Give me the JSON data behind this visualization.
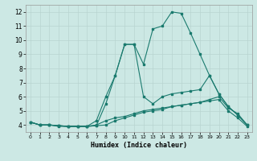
{
  "xlabel": "Humidex (Indice chaleur)",
  "background_color": "#cce8e4",
  "grid_color": "#b8d4d0",
  "line_color": "#1a7a6e",
  "xlim": [
    -0.5,
    23.5
  ],
  "ylim": [
    3.5,
    12.5
  ],
  "xticks": [
    0,
    1,
    2,
    3,
    4,
    5,
    6,
    7,
    8,
    9,
    10,
    11,
    12,
    13,
    14,
    15,
    16,
    17,
    18,
    19,
    20,
    21,
    22,
    23
  ],
  "yticks": [
    4,
    5,
    6,
    7,
    8,
    9,
    10,
    11,
    12
  ],
  "line1_x": [
    0,
    1,
    2,
    3,
    4,
    5,
    6,
    7,
    8,
    9,
    10,
    11,
    12,
    13,
    14,
    15,
    16,
    17,
    18,
    19,
    20,
    21,
    22,
    23
  ],
  "line1_y": [
    4.2,
    4.0,
    4.0,
    3.9,
    3.9,
    3.9,
    3.9,
    4.0,
    4.3,
    4.5,
    4.6,
    4.8,
    5.0,
    5.1,
    5.2,
    5.3,
    5.4,
    5.5,
    5.6,
    5.7,
    5.8,
    5.0,
    4.5,
    3.9
  ],
  "line2_x": [
    0,
    1,
    2,
    3,
    4,
    5,
    6,
    7,
    8,
    9,
    10,
    11,
    12,
    13,
    14,
    15,
    16,
    17,
    18,
    19,
    20,
    21,
    22,
    23
  ],
  "line2_y": [
    4.2,
    4.0,
    4.0,
    3.95,
    3.9,
    3.9,
    3.9,
    3.95,
    4.0,
    4.3,
    4.5,
    4.7,
    4.9,
    5.0,
    5.1,
    5.3,
    5.4,
    5.5,
    5.6,
    5.8,
    6.0,
    5.2,
    4.8,
    4.0
  ],
  "line3_x": [
    0,
    1,
    2,
    3,
    4,
    5,
    6,
    7,
    8,
    9,
    10,
    11,
    12,
    13,
    14,
    15,
    16,
    17,
    18,
    19,
    20,
    21,
    22,
    23
  ],
  "line3_y": [
    4.2,
    4.0,
    4.0,
    3.95,
    3.9,
    3.9,
    3.9,
    3.95,
    5.5,
    7.5,
    9.7,
    9.7,
    8.3,
    10.8,
    11.0,
    12.0,
    11.9,
    10.5,
    9.0,
    7.5,
    6.2,
    5.3,
    4.7,
    4.0
  ],
  "line4_x": [
    0,
    1,
    2,
    3,
    4,
    5,
    6,
    7,
    8,
    9,
    10,
    11,
    12,
    13,
    14,
    15,
    16,
    17,
    18,
    19,
    20,
    21,
    22,
    23
  ],
  "line4_y": [
    4.2,
    4.0,
    4.0,
    3.95,
    3.9,
    3.9,
    3.9,
    4.3,
    6.0,
    7.5,
    9.7,
    9.7,
    6.0,
    5.5,
    6.0,
    6.2,
    6.3,
    6.4,
    6.5,
    7.5,
    6.2,
    5.3,
    4.7,
    4.0
  ]
}
